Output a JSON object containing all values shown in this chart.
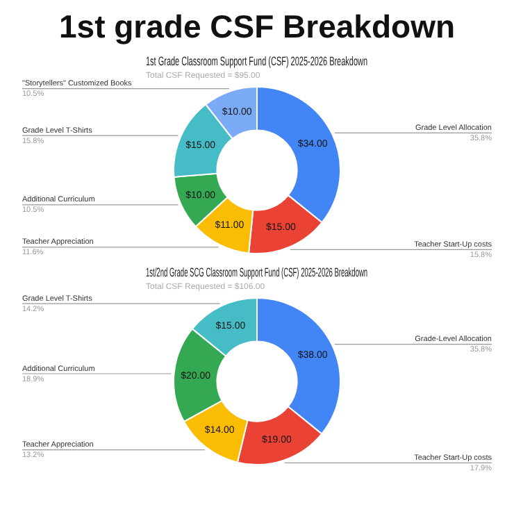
{
  "chart_data": [
    {
      "type": "other",
      "title": "1st grade CSF Breakdown"
    },
    {
      "type": "donut",
      "title": "1st Grade Classroom Support Fund (CSF) 2025-2026 Breakdown",
      "subtitle": "Total CSF Requested = $95.00",
      "categories": [
        "Grade Level Allocation",
        "Teacher Start-Up costs",
        "Teacher Appreciation",
        "Additional Curriculum",
        "Grade Level T-Shirts",
        "\"Storytellers\" Customized Books"
      ],
      "values": [
        34,
        15,
        11,
        10,
        15,
        10
      ],
      "value_labels": [
        "$34.00",
        "$15.00",
        "$11.00",
        "$10.00",
        "$15.00",
        "$10.00"
      ],
      "annotations": [
        "35.8%",
        "15.8%",
        "11.6%",
        "10.5%",
        "15.8%",
        "10.5%"
      ],
      "colors": [
        "#4285f4",
        "#ea4335",
        "#fbbc04",
        "#34a853",
        "#46bdc6",
        "#7baaf7"
      ]
    },
    {
      "type": "donut",
      "title": "1st/2nd Grade SCG Classroom Support Fund (CSF) 2025-2026 Breakdown",
      "subtitle": "Total CSF Requested = $106.00",
      "categories": [
        "Grade-Level Allocation",
        "Teacher Start-Up costs",
        "Teacher Appreciation",
        "Additional Curriculum",
        "Grade Level T-Shirts"
      ],
      "values": [
        38,
        19,
        14,
        20,
        15
      ],
      "value_labels": [
        "$38.00",
        "$19.00",
        "$14.00",
        "$20.00",
        "$15.00"
      ],
      "annotations": [
        "35.8%",
        "17.9%",
        "13.2%",
        "18.9%",
        "14.2%"
      ],
      "colors": [
        "#4285f4",
        "#ea4335",
        "#fbbc04",
        "#34a853",
        "#46bdc6"
      ]
    }
  ]
}
